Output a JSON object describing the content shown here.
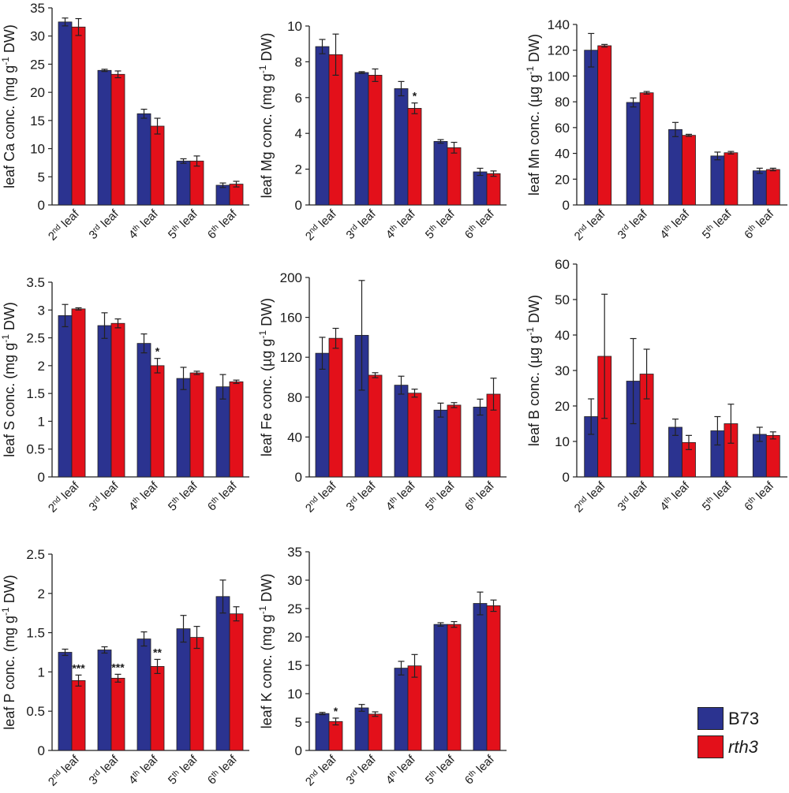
{
  "legend": {
    "b73": {
      "label": "B73",
      "color": "#2b3390"
    },
    "rth3": {
      "label": "rth3",
      "color": "#e3101a",
      "italic": true
    }
  },
  "chart_data": [
    {
      "type": "bar",
      "ylabel": "leaf Ca conc. (mg g-1 DW)",
      "ylabel_parts": [
        "leaf Ca conc. (mg g",
        "-1",
        " DW)"
      ],
      "categories": [
        "2nd leaf",
        "3rd leaf",
        "4th leaf",
        "5th leaf",
        "6th leaf"
      ],
      "ylim": [
        0,
        35
      ],
      "yticks": [
        0,
        5,
        10,
        15,
        20,
        25,
        30,
        35
      ],
      "ytick_labels": [
        "0",
        "5",
        "10",
        "15",
        "20",
        "25",
        "30",
        "35"
      ],
      "series": [
        {
          "name": "B73",
          "values": [
            32.5,
            23.9,
            16.2,
            7.8,
            3.5
          ],
          "errors": [
            0.7,
            0.2,
            0.8,
            0.4,
            0.4
          ]
        },
        {
          "name": "rth3",
          "values": [
            31.6,
            23.2,
            14.0,
            7.8,
            3.7
          ],
          "errors": [
            1.5,
            0.6,
            1.4,
            0.9,
            0.5
          ]
        }
      ],
      "significance": [
        "",
        "",
        "",
        "",
        ""
      ]
    },
    {
      "type": "bar",
      "ylabel": "leaf Mg conc. (mg g-1 DW)",
      "ylabel_parts": [
        "leaf Mg conc. (mg g",
        "-1",
        " DW)"
      ],
      "categories": [
        "2nd leaf",
        "3rd leaf",
        "4th leaf",
        "5th leaf",
        "6th leaf"
      ],
      "ylim": [
        0,
        10
      ],
      "yticks": [
        0,
        2,
        4,
        6,
        8,
        10
      ],
      "ytick_labels": [
        "0",
        "2",
        "4",
        "6",
        "8",
        "10"
      ],
      "series": [
        {
          "name": "B73",
          "values": [
            8.85,
            7.4,
            6.5,
            3.55,
            1.85
          ],
          "errors": [
            0.4,
            0.05,
            0.4,
            0.1,
            0.2
          ]
        },
        {
          "name": "rth3",
          "values": [
            8.4,
            7.25,
            5.4,
            3.2,
            1.75
          ],
          "errors": [
            1.15,
            0.35,
            0.3,
            0.3,
            0.15
          ]
        }
      ],
      "significance": [
        "",
        "",
        "*",
        "",
        ""
      ]
    },
    {
      "type": "bar",
      "ylabel": "leaf Mn conc. (µg g-1 DW)",
      "ylabel_parts": [
        "leaf Mn conc. (µg g",
        "-1",
        " DW)"
      ],
      "categories": [
        "2nd leaf",
        "3rd leaf",
        "4th leaf",
        "5th leaf",
        "6th leaf"
      ],
      "ylim": [
        0,
        140
      ],
      "yticks": [
        0,
        20,
        40,
        60,
        80,
        100,
        120,
        140
      ],
      "ytick_labels": [
        "0",
        "20",
        "40",
        "60",
        "80",
        "100",
        "120",
        "140"
      ],
      "series": [
        {
          "name": "B73",
          "values": [
            120,
            79.5,
            58.5,
            38,
            26.5
          ],
          "errors": [
            13,
            3.5,
            5.5,
            3,
            2
          ]
        },
        {
          "name": "rth3",
          "values": [
            123.5,
            87,
            54,
            40.5,
            27.5
          ],
          "errors": [
            1,
            1,
            0.8,
            1,
            1
          ]
        }
      ],
      "significance": [
        "",
        "",
        "",
        "",
        ""
      ]
    },
    {
      "type": "bar",
      "ylabel": "leaf S conc. (mg g-1 DW)",
      "ylabel_parts": [
        "leaf S conc. (mg g",
        "-1",
        " DW)"
      ],
      "categories": [
        "2nd leaf",
        "3rd leaf",
        "4th leaf",
        "5th leaf",
        "6th leaf"
      ],
      "ylim": [
        0,
        3.5
      ],
      "yticks": [
        0,
        0.5,
        1,
        1.5,
        2,
        2.5,
        3,
        3.5
      ],
      "ytick_labels": [
        "0",
        "0.5",
        "1",
        "1.5",
        "2",
        "2.5",
        "3",
        "3.5"
      ],
      "series": [
        {
          "name": "B73",
          "values": [
            2.9,
            2.72,
            2.4,
            1.77,
            1.62
          ],
          "errors": [
            0.2,
            0.23,
            0.17,
            0.2,
            0.22
          ]
        },
        {
          "name": "rth3",
          "values": [
            3.02,
            2.76,
            2.0,
            1.87,
            1.71
          ],
          "errors": [
            0.02,
            0.08,
            0.13,
            0.03,
            0.03
          ]
        }
      ],
      "significance": [
        "",
        "",
        "*",
        "",
        ""
      ]
    },
    {
      "type": "bar",
      "ylabel": "leaf Fe conc. (µg g-1 DW)",
      "ylabel_parts": [
        "leaf Fe conc. (µg g",
        "-1",
        " DW)"
      ],
      "categories": [
        "2nd leaf",
        "3rd leaf",
        "4th leaf",
        "5th leaf",
        "6th leaf"
      ],
      "ylim": [
        0,
        200
      ],
      "yticks": [
        0,
        40,
        80,
        120,
        160,
        200
      ],
      "ytick_labels": [
        "0",
        "40",
        "80",
        "120",
        "160",
        "200"
      ],
      "series": [
        {
          "name": "B73",
          "values": [
            124,
            142,
            92,
            67,
            70
          ],
          "errors": [
            16,
            55,
            9,
            7,
            8
          ]
        },
        {
          "name": "rth3",
          "values": [
            139,
            102,
            84,
            72,
            83
          ],
          "errors": [
            10,
            2.5,
            4,
            2.5,
            16
          ]
        }
      ],
      "significance": [
        "",
        "",
        "",
        "",
        ""
      ]
    },
    {
      "type": "bar",
      "ylabel": "leaf B conc. (µg g-1 DW)",
      "ylabel_parts": [
        "leaf B conc. (µg g",
        "-1",
        " DW)"
      ],
      "categories": [
        "2nd leaf",
        "3rd leaf",
        "4th leaf",
        "5th leaf",
        "6th leaf"
      ],
      "ylim": [
        0,
        60
      ],
      "yticks": [
        0,
        10,
        20,
        30,
        40,
        50,
        60
      ],
      "ytick_labels": [
        "0",
        "10",
        "20",
        "30",
        "40",
        "50",
        "60"
      ],
      "series": [
        {
          "name": "B73",
          "values": [
            17,
            27,
            14,
            13,
            12
          ],
          "errors": [
            5,
            12,
            2.3,
            4,
            2
          ]
        },
        {
          "name": "rth3",
          "values": [
            34,
            29,
            9.7,
            15,
            11.7
          ],
          "errors": [
            17.5,
            7,
            2,
            5.5,
            1
          ]
        }
      ],
      "significance": [
        "",
        "",
        "",
        "",
        ""
      ]
    },
    {
      "type": "bar",
      "ylabel": "leaf P conc. (mg g-1 DW)",
      "ylabel_parts": [
        "leaf P conc. (mg g",
        "-1",
        " DW)"
      ],
      "categories": [
        "2nd leaf",
        "3rd leaf",
        "4th leaf",
        "5th leaf",
        "6th leaf"
      ],
      "ylim": [
        0,
        2.5
      ],
      "yticks": [
        0,
        0.5,
        1,
        1.5,
        2,
        2.5
      ],
      "ytick_labels": [
        "0",
        "0.5",
        "1",
        "1.5",
        "2",
        "2.5"
      ],
      "series": [
        {
          "name": "B73",
          "values": [
            1.25,
            1.28,
            1.42,
            1.55,
            1.96
          ],
          "errors": [
            0.04,
            0.04,
            0.09,
            0.17,
            0.21
          ]
        },
        {
          "name": "rth3",
          "values": [
            0.89,
            0.92,
            1.07,
            1.44,
            1.74
          ],
          "errors": [
            0.07,
            0.05,
            0.09,
            0.14,
            0.09
          ]
        }
      ],
      "significance": [
        "***",
        "***",
        "**",
        "",
        ""
      ]
    },
    {
      "type": "bar",
      "ylabel": "leaf K conc. (mg g-1 DW)",
      "ylabel_parts": [
        "leaf K conc. (mg g",
        "-1",
        " DW)"
      ],
      "categories": [
        "2nd leaf",
        "3rd leaf",
        "4th leaf",
        "5th leaf",
        "6th leaf"
      ],
      "ylim": [
        0,
        35
      ],
      "yticks": [
        0,
        5,
        10,
        15,
        20,
        25,
        30,
        35
      ],
      "ytick_labels": [
        "0",
        "5",
        "10",
        "15",
        "20",
        "25",
        "30",
        "35"
      ],
      "series": [
        {
          "name": "B73",
          "values": [
            6.5,
            7.5,
            14.5,
            22.2,
            25.9
          ],
          "errors": [
            0.2,
            0.6,
            1.2,
            0.3,
            2
          ]
        },
        {
          "name": "rth3",
          "values": [
            5.1,
            6.4,
            14.9,
            22.2,
            25.5
          ],
          "errors": [
            0.6,
            0.4,
            2,
            0.5,
            1
          ]
        }
      ],
      "significance": [
        "*",
        "",
        "",
        "",
        ""
      ]
    }
  ]
}
